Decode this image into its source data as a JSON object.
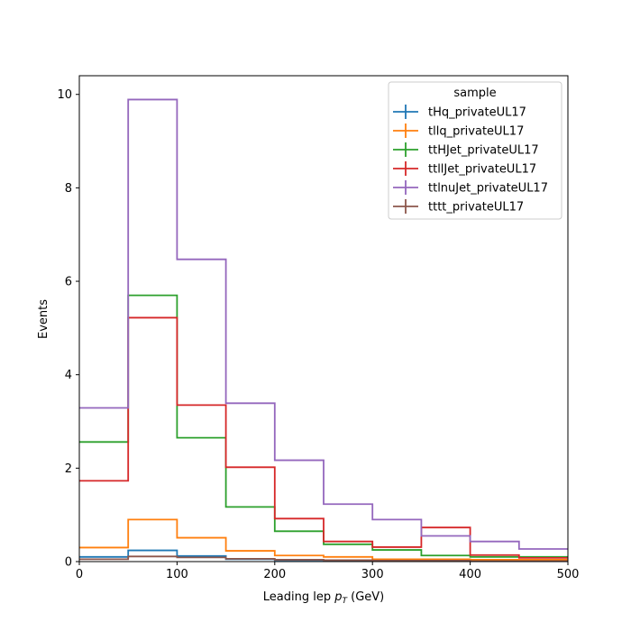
{
  "chart_data": {
    "type": "step",
    "xlabel_main": "Leading lep ",
    "xlabel_symbol": "p",
    "xlabel_sub": "T",
    "xlabel_unit": " (GeV)",
    "ylabel": "Events",
    "xlim": [
      0,
      500
    ],
    "ylim": [
      0,
      10.4
    ],
    "xticks": [
      0,
      100,
      200,
      300,
      400,
      500
    ],
    "yticks": [
      0,
      2,
      4,
      6,
      8,
      10
    ],
    "bin_edges": [
      0,
      50,
      100,
      150,
      200,
      250,
      300,
      350,
      400,
      450,
      500
    ],
    "legend": {
      "title": "sample",
      "placement": "top-right"
    },
    "series": [
      {
        "name": "tHq_privateUL17",
        "color": "#1f77b4",
        "values": [
          0.1,
          0.24,
          0.12,
          0.05,
          0.03,
          0.02,
          0.01,
          0.01,
          0.01,
          0.01
        ]
      },
      {
        "name": "tllq_privateUL17",
        "color": "#ff7f0e",
        "values": [
          0.3,
          0.9,
          0.51,
          0.23,
          0.13,
          0.1,
          0.05,
          0.05,
          0.04,
          0.04
        ]
      },
      {
        "name": "ttHJet_privateUL17",
        "color": "#2ca02c",
        "values": [
          2.56,
          5.7,
          2.65,
          1.17,
          0.65,
          0.37,
          0.25,
          0.13,
          0.1,
          0.1
        ]
      },
      {
        "name": "ttllJet_privateUL17",
        "color": "#d62728",
        "values": [
          1.73,
          5.22,
          3.35,
          2.02,
          0.92,
          0.43,
          0.31,
          0.73,
          0.14,
          0.08
        ]
      },
      {
        "name": "ttlnuJet_privateUL17",
        "color": "#9467bd",
        "values": [
          3.29,
          9.89,
          6.47,
          3.39,
          2.17,
          1.23,
          0.9,
          0.55,
          0.43,
          0.27
        ]
      },
      {
        "name": "tttt_privateUL17",
        "color": "#8c564b",
        "values": [
          0.05,
          0.11,
          0.09,
          0.06,
          0.04,
          0.03,
          0.02,
          0.02,
          0.01,
          0.01
        ]
      }
    ]
  }
}
